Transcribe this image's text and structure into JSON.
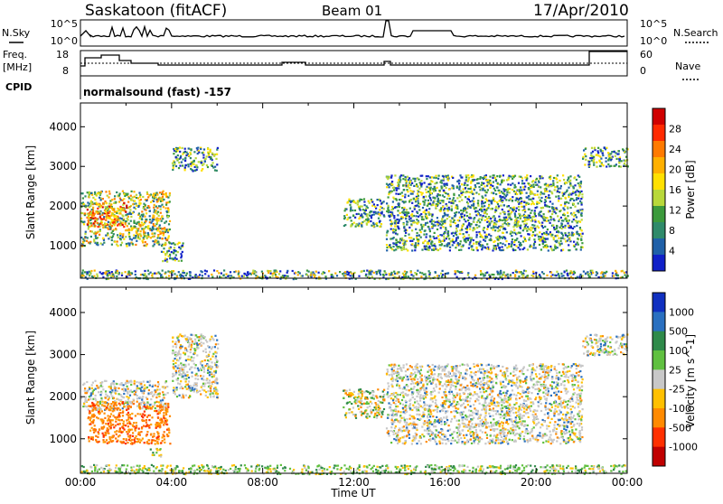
{
  "header": {
    "station": "Saskatoon (fitACF)",
    "beam": "Beam 01",
    "date": "17/Apr/2010"
  },
  "strip_labels": {
    "nsky": "N.Sky",
    "nsky_axis": [
      "10^5",
      "10^0"
    ],
    "nsearch": "N.Search",
    "nsearch_axis": [
      "10^5",
      "10^0"
    ],
    "freq_top": "Freq.",
    "freq_unit": "[MHz]",
    "freq_axis": [
      "18",
      "8"
    ],
    "nave": "Nave",
    "nave_axis": [
      "60",
      "0"
    ],
    "cpid": "CPID",
    "cpid_text": "normalsound (fast) -157"
  },
  "chart_data": [
    {
      "type": "heatmap",
      "name": "power-panel",
      "ylabel": "Slant Range [km]",
      "yticks": [
        "1000",
        "2000",
        "3000",
        "4000"
      ],
      "xlabel": "Time UT",
      "xticks": [
        "00:00",
        "04:00",
        "08:00",
        "12:00",
        "16:00",
        "20:00",
        "00:00"
      ],
      "xlim_hours": [
        0,
        24
      ],
      "ylim_km": [
        180,
        4600
      ],
      "colorbar_label": "Power [dB]",
      "colorbar_ticks": [
        "28",
        "24",
        "20",
        "16",
        "12",
        "8",
        "4"
      ],
      "colorbar_colors": [
        "#d00000",
        "#ff2a00",
        "#ff7a00",
        "#ffb000",
        "#ffe000",
        "#b8d83a",
        "#3c9a3c",
        "#2f8a6a",
        "#1f60a8",
        "#1020c8"
      ],
      "regions": [
        {
          "t0": 0.0,
          "t1": 3.9,
          "r0": 1000,
          "r1": 2400,
          "level": "high"
        },
        {
          "t0": 0.2,
          "t1": 2.0,
          "r0": 1500,
          "r1": 2100,
          "level": "peak"
        },
        {
          "t0": 4.0,
          "t1": 6.0,
          "r0": 2900,
          "r1": 3500,
          "level": "mid"
        },
        {
          "t0": 3.5,
          "t1": 4.5,
          "r0": 600,
          "r1": 1100,
          "level": "mid"
        },
        {
          "t0": 11.5,
          "t1": 13.3,
          "r0": 1500,
          "r1": 2200,
          "level": "mid"
        },
        {
          "t0": 13.4,
          "t1": 22.0,
          "r0": 900,
          "r1": 2800,
          "level": "mid"
        },
        {
          "t0": 22.0,
          "t1": 24.0,
          "r0": 3000,
          "r1": 3500,
          "level": "mid"
        },
        {
          "t0": 0.0,
          "t1": 24.0,
          "r0": 180,
          "r1": 400,
          "level": "low"
        }
      ]
    },
    {
      "type": "heatmap",
      "name": "velocity-panel",
      "ylabel": "Slant Range [km]",
      "yticks": [
        "1000",
        "2000",
        "3000",
        "4000"
      ],
      "xlabel": "Time UT",
      "xticks": [
        "00:00",
        "04:00",
        "08:00",
        "12:00",
        "16:00",
        "20:00",
        "00:00"
      ],
      "xlim_hours": [
        0,
        24
      ],
      "ylim_km": [
        180,
        4600
      ],
      "colorbar_label": "Velocity [m s^-1]",
      "colorbar_ticks": [
        "1000",
        "500",
        "100",
        "25",
        "-25",
        "-100",
        "-500",
        "-1000"
      ],
      "colorbar_colors": [
        "#1030c0",
        "#2a70c0",
        "#2f8a4a",
        "#60c040",
        "#c8c8c8",
        "#ffc000",
        "#ff8a00",
        "#ff3000",
        "#c00000"
      ],
      "regions": [
        {
          "t0": 0.0,
          "t1": 3.8,
          "r0": 1700,
          "r1": 2400,
          "level": "grey"
        },
        {
          "t0": 0.3,
          "t1": 3.9,
          "r0": 900,
          "r1": 1900,
          "level": "orange"
        },
        {
          "t0": 3.0,
          "t1": 3.5,
          "r0": 600,
          "r1": 800,
          "level": "green"
        },
        {
          "t0": 4.0,
          "t1": 6.0,
          "r0": 2000,
          "r1": 3500,
          "level": "grey"
        },
        {
          "t0": 11.5,
          "t1": 13.3,
          "r0": 1500,
          "r1": 2200,
          "level": "mixed"
        },
        {
          "t0": 13.4,
          "t1": 22.0,
          "r0": 900,
          "r1": 2800,
          "level": "grey"
        },
        {
          "t0": 22.0,
          "t1": 24.0,
          "r0": 3000,
          "r1": 3500,
          "level": "grey"
        },
        {
          "t0": 0.0,
          "t1": 24.0,
          "r0": 180,
          "r1": 400,
          "level": "green"
        }
      ]
    }
  ]
}
